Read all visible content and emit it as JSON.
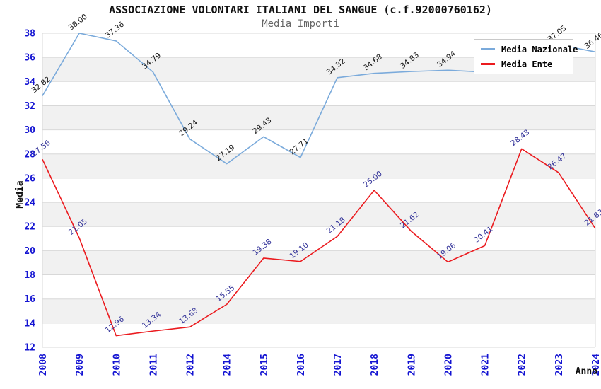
{
  "title": "ASSOCIAZIONE VOLONTARI ITALIANI DEL SANGUE (c.f.92000760162)",
  "subtitle": "Media Importi",
  "legend": {
    "items": [
      {
        "label": "Media Nazionale",
        "color": "#7AAADB"
      },
      {
        "label": "Media Ente",
        "color": "#EB1A1E"
      }
    ]
  },
  "colors": {
    "tick_label": "#1414D2",
    "grid_line": "#D8D8D8",
    "band_fill": "#F1F1F1",
    "axis_title": "#111111"
  },
  "chart_data": {
    "type": "line",
    "x": [
      "2008",
      "2009",
      "2010",
      "2011",
      "2012",
      "2014",
      "2015",
      "2016",
      "2017",
      "2018",
      "2019",
      "2020",
      "2021",
      "2022",
      "2023",
      "2024"
    ],
    "series": [
      {
        "name": "Media Nazionale",
        "color": "#7AAADB",
        "label_color": "#1A1A1A",
        "values": [
          32.82,
          38.0,
          37.36,
          34.79,
          29.24,
          27.19,
          29.43,
          27.71,
          34.32,
          34.68,
          34.83,
          34.94,
          34.78,
          35.6,
          37.05,
          36.46
        ],
        "labels": [
          "32.82",
          "38.00",
          "37.36",
          "34.79",
          "29.24",
          "27.19",
          "29.43",
          "27.71",
          "34.32",
          "34.68",
          "34.83",
          "34.94",
          null,
          null,
          "37.05",
          "36.46"
        ]
      },
      {
        "name": "Media Ente",
        "color": "#EB1A1E",
        "label_color": "#333399",
        "values": [
          27.56,
          21.05,
          12.96,
          13.34,
          13.68,
          15.55,
          19.38,
          19.1,
          21.18,
          25.0,
          21.62,
          19.06,
          20.41,
          28.43,
          26.47,
          21.83
        ],
        "labels": [
          "27.56",
          "21.05",
          "12.96",
          "13.34",
          "13.68",
          "15.55",
          "19.38",
          "19.10",
          "21.18",
          "25.00",
          "21.62",
          "19.06",
          "20.41",
          "28.43",
          "26.47",
          "21.83"
        ]
      }
    ],
    "xlabel": "Anno",
    "ylabel": "Media",
    "ylim": [
      12,
      38
    ],
    "ytick_step": 2,
    "grid": true,
    "legend_position": "top-right"
  }
}
